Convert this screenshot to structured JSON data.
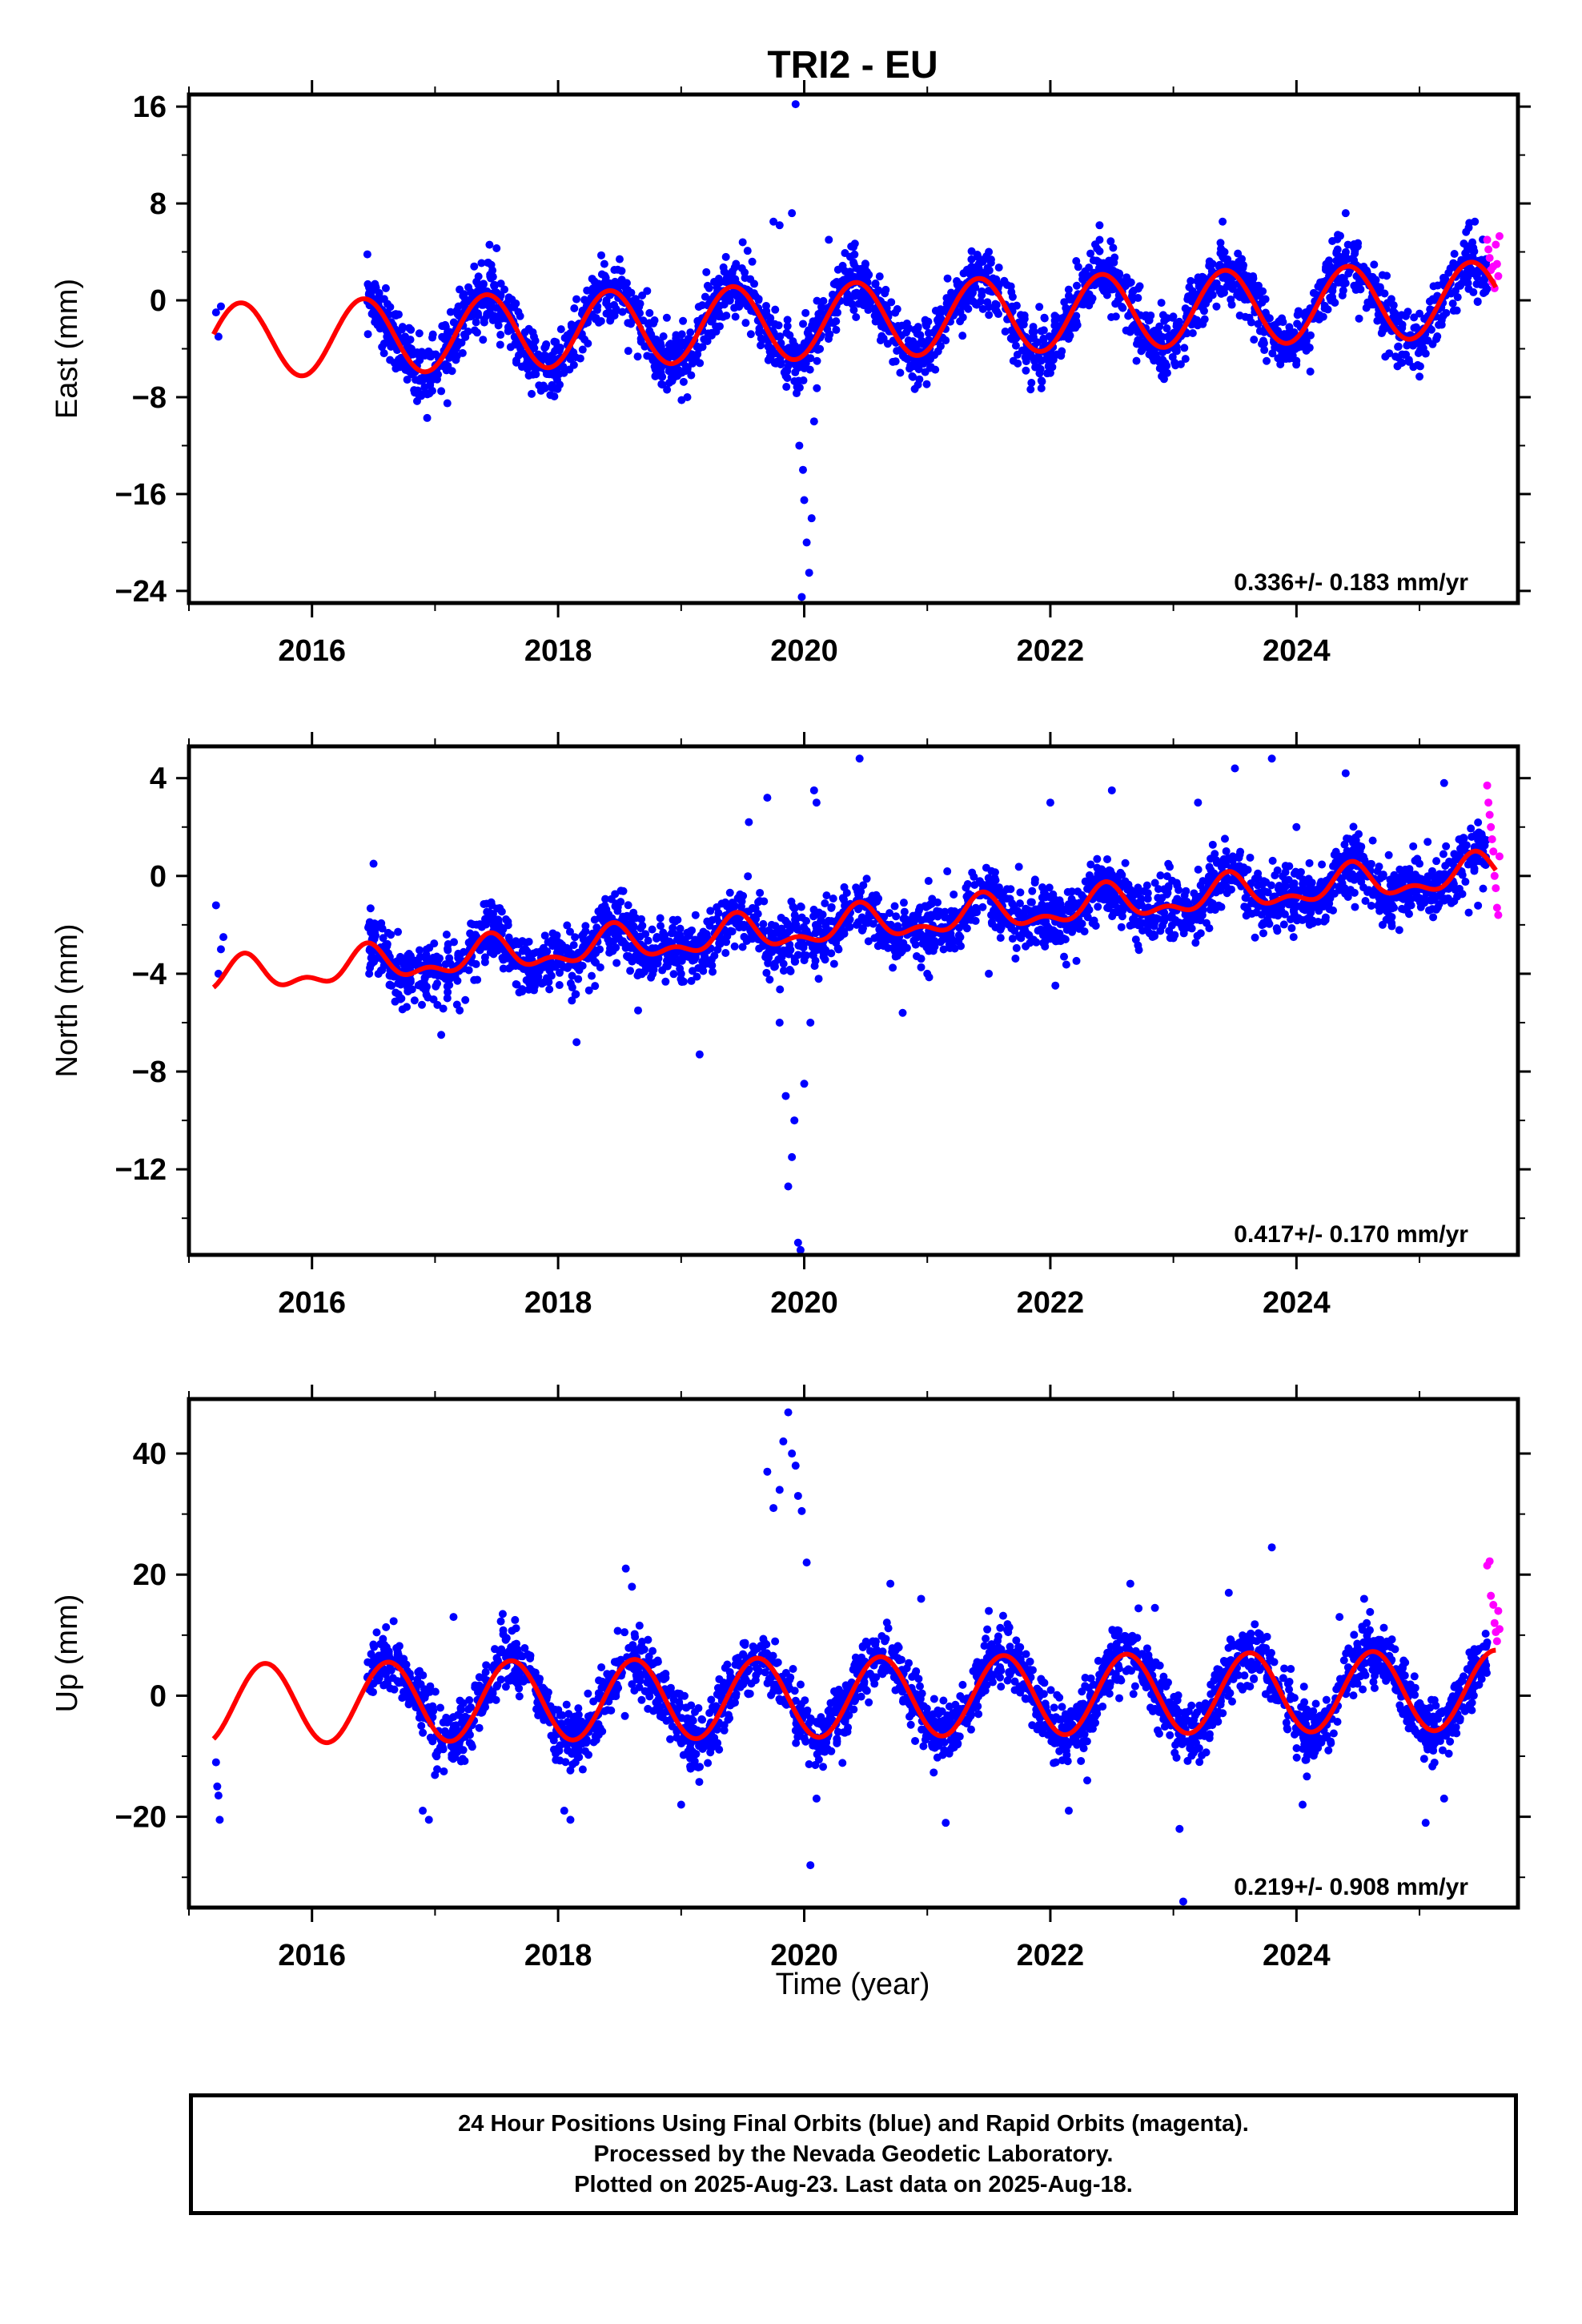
{
  "chart_data": {
    "title": "TRI2 - EU",
    "xlabel": "Time (year)",
    "x_tick_labels": [
      "2016",
      "2018",
      "2020",
      "2022",
      "2024"
    ],
    "x_ticks": [
      2016,
      2018,
      2020,
      2022,
      2024
    ],
    "xlim": [
      2015.0,
      2025.8
    ],
    "colors": {
      "final": "#0000ff",
      "rapid": "#ff00ff",
      "model": "#ff0000"
    },
    "panels": [
      {
        "type": "scatter",
        "name": "east",
        "ylabel": "East (mm)",
        "ylim": [
          -25,
          17
        ],
        "y_ticks": [
          16,
          8,
          0,
          -8,
          -16,
          -24
        ],
        "y_tick_labels": [
          "16",
          "8",
          "0",
          "−8",
          "−16",
          "−24"
        ],
        "rate": "0.336+/- 0.183 mm/yr",
        "model": {
          "trend": 0.336,
          "amplitude": 3.1,
          "peak": 0.42,
          "offset": -1.6,
          "semi": 0.0
        },
        "series": [
          {
            "name": "Final Orbits",
            "color": "#0000ff",
            "points": [
              [
                2015.22,
                -1.0
              ],
              [
                2015.24,
                -3.0
              ],
              [
                2015.26,
                -0.5
              ],
              [
                2016.45,
                3.8
              ],
              [
                2016.6,
                1.0
              ],
              [
                2016.95,
                -6.5
              ],
              [
                2017.05,
                -7.5
              ],
              [
                2017.1,
                -8.5
              ],
              [
                2017.5,
                4.3
              ],
              [
                2017.8,
                -5.5
              ],
              [
                2017.95,
                -7.0
              ],
              [
                2018.5,
                3.4
              ],
              [
                2018.95,
                -6.0
              ],
              [
                2019.05,
                -8.0
              ],
              [
                2019.5,
                4.8
              ],
              [
                2019.75,
                6.5
              ],
              [
                2019.8,
                6.2
              ],
              [
                2019.9,
                7.2
              ],
              [
                2019.93,
                16.2
              ],
              [
                2019.96,
                -12.0
              ],
              [
                2019.99,
                -14.0
              ],
              [
                2020.0,
                -16.5
              ],
              [
                2020.02,
                -20.0
              ],
              [
                2020.04,
                -22.5
              ],
              [
                2020.06,
                -18.0
              ],
              [
                2020.08,
                -10.0
              ],
              [
                2019.98,
                -24.5
              ],
              [
                2020.2,
                5.0
              ],
              [
                2020.4,
                4.4
              ],
              [
                2021.5,
                4.0
              ],
              [
                2021.7,
                -5.0
              ],
              [
                2022.0,
                -6.0
              ],
              [
                2022.4,
                6.2
              ],
              [
                2022.7,
                -5.0
              ],
              [
                2022.9,
                -3.5
              ],
              [
                2023.4,
                6.5
              ],
              [
                2023.9,
                -4.5
              ],
              [
                2024.0,
                -5.0
              ],
              [
                2024.4,
                7.2
              ],
              [
                2024.95,
                -5.5
              ],
              [
                2025.0,
                -6.3
              ],
              [
                2025.4,
                6.0
              ],
              [
                2025.45,
                6.5
              ]
            ]
          },
          {
            "name": "Rapid Orbits",
            "color": "#ff00ff",
            "points": [
              [
                2025.55,
                5.0
              ],
              [
                2025.56,
                4.2
              ],
              [
                2025.57,
                3.5
              ],
              [
                2025.58,
                2.5
              ],
              [
                2025.59,
                1.5
              ],
              [
                2025.6,
                2.8
              ],
              [
                2025.61,
                1.0
              ],
              [
                2025.62,
                4.6
              ],
              [
                2025.63,
                3.0
              ],
              [
                2025.64,
                2.0
              ],
              [
                2025.65,
                5.3
              ]
            ]
          }
        ]
      },
      {
        "type": "scatter",
        "name": "north",
        "ylabel": "North (mm)",
        "ylim": [
          -15.5,
          5.3
        ],
        "y_ticks": [
          4,
          0,
          -4,
          -8,
          -12
        ],
        "y_tick_labels": [
          "4",
          "0",
          "−4",
          "−8",
          "−12"
        ],
        "rate": "0.417+/- 0.170 mm/yr",
        "model": {
          "trend": 0.417,
          "amplitude": 0.6,
          "peak": 0.45,
          "offset": -2.0,
          "semi": 0.35
        },
        "series": [
          {
            "name": "Final Orbits",
            "color": "#0000ff",
            "points": [
              [
                2015.22,
                -1.2
              ],
              [
                2015.24,
                -4.0
              ],
              [
                2015.26,
                -3.0
              ],
              [
                2015.28,
                -2.5
              ],
              [
                2016.5,
                0.5
              ],
              [
                2016.6,
                -3.0
              ],
              [
                2017.05,
                -6.5
              ],
              [
                2017.1,
                -5.0
              ],
              [
                2017.2,
                -5.5
              ],
              [
                2018.15,
                -6.8
              ],
              [
                2018.3,
                -4.5
              ],
              [
                2018.65,
                -5.5
              ],
              [
                2019.0,
                -4.0
              ],
              [
                2019.15,
                -7.3
              ],
              [
                2019.55,
                2.2
              ],
              [
                2019.7,
                3.2
              ],
              [
                2019.75,
                -3.0
              ],
              [
                2019.8,
                -6.0
              ],
              [
                2019.85,
                -9.0
              ],
              [
                2019.87,
                -12.7
              ],
              [
                2019.9,
                -11.5
              ],
              [
                2019.92,
                -10.0
              ],
              [
                2019.95,
                -15.0
              ],
              [
                2019.97,
                -15.3
              ],
              [
                2020.0,
                -8.5
              ],
              [
                2020.05,
                -6.0
              ],
              [
                2020.08,
                3.5
              ],
              [
                2020.1,
                3.0
              ],
              [
                2020.45,
                4.8
              ],
              [
                2020.8,
                -5.6
              ],
              [
                2021.0,
                -4.0
              ],
              [
                2021.5,
                -4.0
              ],
              [
                2022.0,
                3.0
              ],
              [
                2022.5,
                3.5
              ],
              [
                2023.2,
                3.0
              ],
              [
                2023.5,
                4.4
              ],
              [
                2023.8,
                4.8
              ],
              [
                2024.0,
                2.0
              ],
              [
                2024.4,
                4.2
              ],
              [
                2024.7,
                -2.0
              ],
              [
                2025.0,
                0.5
              ],
              [
                2025.2,
                3.8
              ],
              [
                2025.4,
                -1.5
              ]
            ]
          },
          {
            "name": "Rapid Orbits",
            "color": "#ff00ff",
            "points": [
              [
                2025.55,
                3.7
              ],
              [
                2025.56,
                3.0
              ],
              [
                2025.57,
                2.5
              ],
              [
                2025.58,
                2.0
              ],
              [
                2025.59,
                1.5
              ],
              [
                2025.6,
                1.0
              ],
              [
                2025.61,
                0.0
              ],
              [
                2025.62,
                -0.5
              ],
              [
                2025.63,
                -1.3
              ],
              [
                2025.64,
                -1.6
              ],
              [
                2025.65,
                0.8
              ]
            ]
          }
        ]
      },
      {
        "type": "scatter",
        "name": "up",
        "ylabel": "Up (mm)",
        "ylim": [
          -35,
          49
        ],
        "y_ticks": [
          40,
          20,
          0,
          -20
        ],
        "y_tick_labels": [
          "40",
          "20",
          "0",
          "−20"
        ],
        "rate": "0.219+/- 0.908 mm/yr",
        "model": {
          "trend": 0.219,
          "amplitude": 6.6,
          "peak": 0.62,
          "offset": -0.2,
          "semi": 0.0
        },
        "series": [
          {
            "name": "Final Orbits",
            "color": "#0000ff",
            "points": [
              [
                2015.22,
                -11.0
              ],
              [
                2015.23,
                -15.0
              ],
              [
                2015.24,
                -16.5
              ],
              [
                2015.25,
                -20.5
              ],
              [
                2016.45,
                3.0
              ],
              [
                2016.5,
                2.0
              ],
              [
                2016.9,
                -19.0
              ],
              [
                2016.95,
                -20.5
              ],
              [
                2017.15,
                13.0
              ],
              [
                2017.55,
                13.5
              ],
              [
                2017.65,
                12.5
              ],
              [
                2018.05,
                -19.0
              ],
              [
                2018.1,
                -20.5
              ],
              [
                2018.55,
                21.0
              ],
              [
                2018.6,
                18.0
              ],
              [
                2019.0,
                -18.0
              ],
              [
                2019.7,
                37.0
              ],
              [
                2019.75,
                31.0
              ],
              [
                2019.8,
                34.0
              ],
              [
                2019.83,
                42.0
              ],
              [
                2019.87,
                46.8
              ],
              [
                2019.9,
                40.0
              ],
              [
                2019.93,
                38.0
              ],
              [
                2019.95,
                33.0
              ],
              [
                2019.98,
                30.5
              ],
              [
                2020.02,
                22.0
              ],
              [
                2020.05,
                -28.0
              ],
              [
                2020.1,
                -17.0
              ],
              [
                2020.7,
                18.5
              ],
              [
                2020.95,
                16.0
              ],
              [
                2021.15,
                -21.0
              ],
              [
                2021.5,
                14.0
              ],
              [
                2022.15,
                -19.0
              ],
              [
                2022.3,
                -14.0
              ],
              [
                2022.65,
                18.5
              ],
              [
                2022.85,
                14.5
              ],
              [
                2023.05,
                -22.0
              ],
              [
                2023.08,
                -34.0
              ],
              [
                2023.45,
                17.0
              ],
              [
                2023.8,
                24.5
              ],
              [
                2024.05,
                -18.0
              ],
              [
                2024.35,
                13.0
              ],
              [
                2024.55,
                16.0
              ],
              [
                2025.05,
                -21.0
              ],
              [
                2025.2,
                -17.0
              ]
            ]
          },
          {
            "name": "Rapid Orbits",
            "color": "#ff00ff",
            "points": [
              [
                2025.55,
                21.5
              ],
              [
                2025.57,
                22.2
              ],
              [
                2025.58,
                16.5
              ],
              [
                2025.6,
                15.0
              ],
              [
                2025.61,
                12.0
              ],
              [
                2025.62,
                10.5
              ],
              [
                2025.63,
                9.0
              ],
              [
                2025.64,
                14.0
              ],
              [
                2025.65,
                11.0
              ]
            ]
          }
        ]
      }
    ]
  },
  "footer": {
    "line1": "24 Hour Positions Using Final Orbits (blue) and Rapid Orbits (magenta).",
    "line2": "Processed by the Nevada Geodetic Laboratory.",
    "line3": "Plotted on 2025-Aug-23. Last data on 2025-Aug-18."
  }
}
